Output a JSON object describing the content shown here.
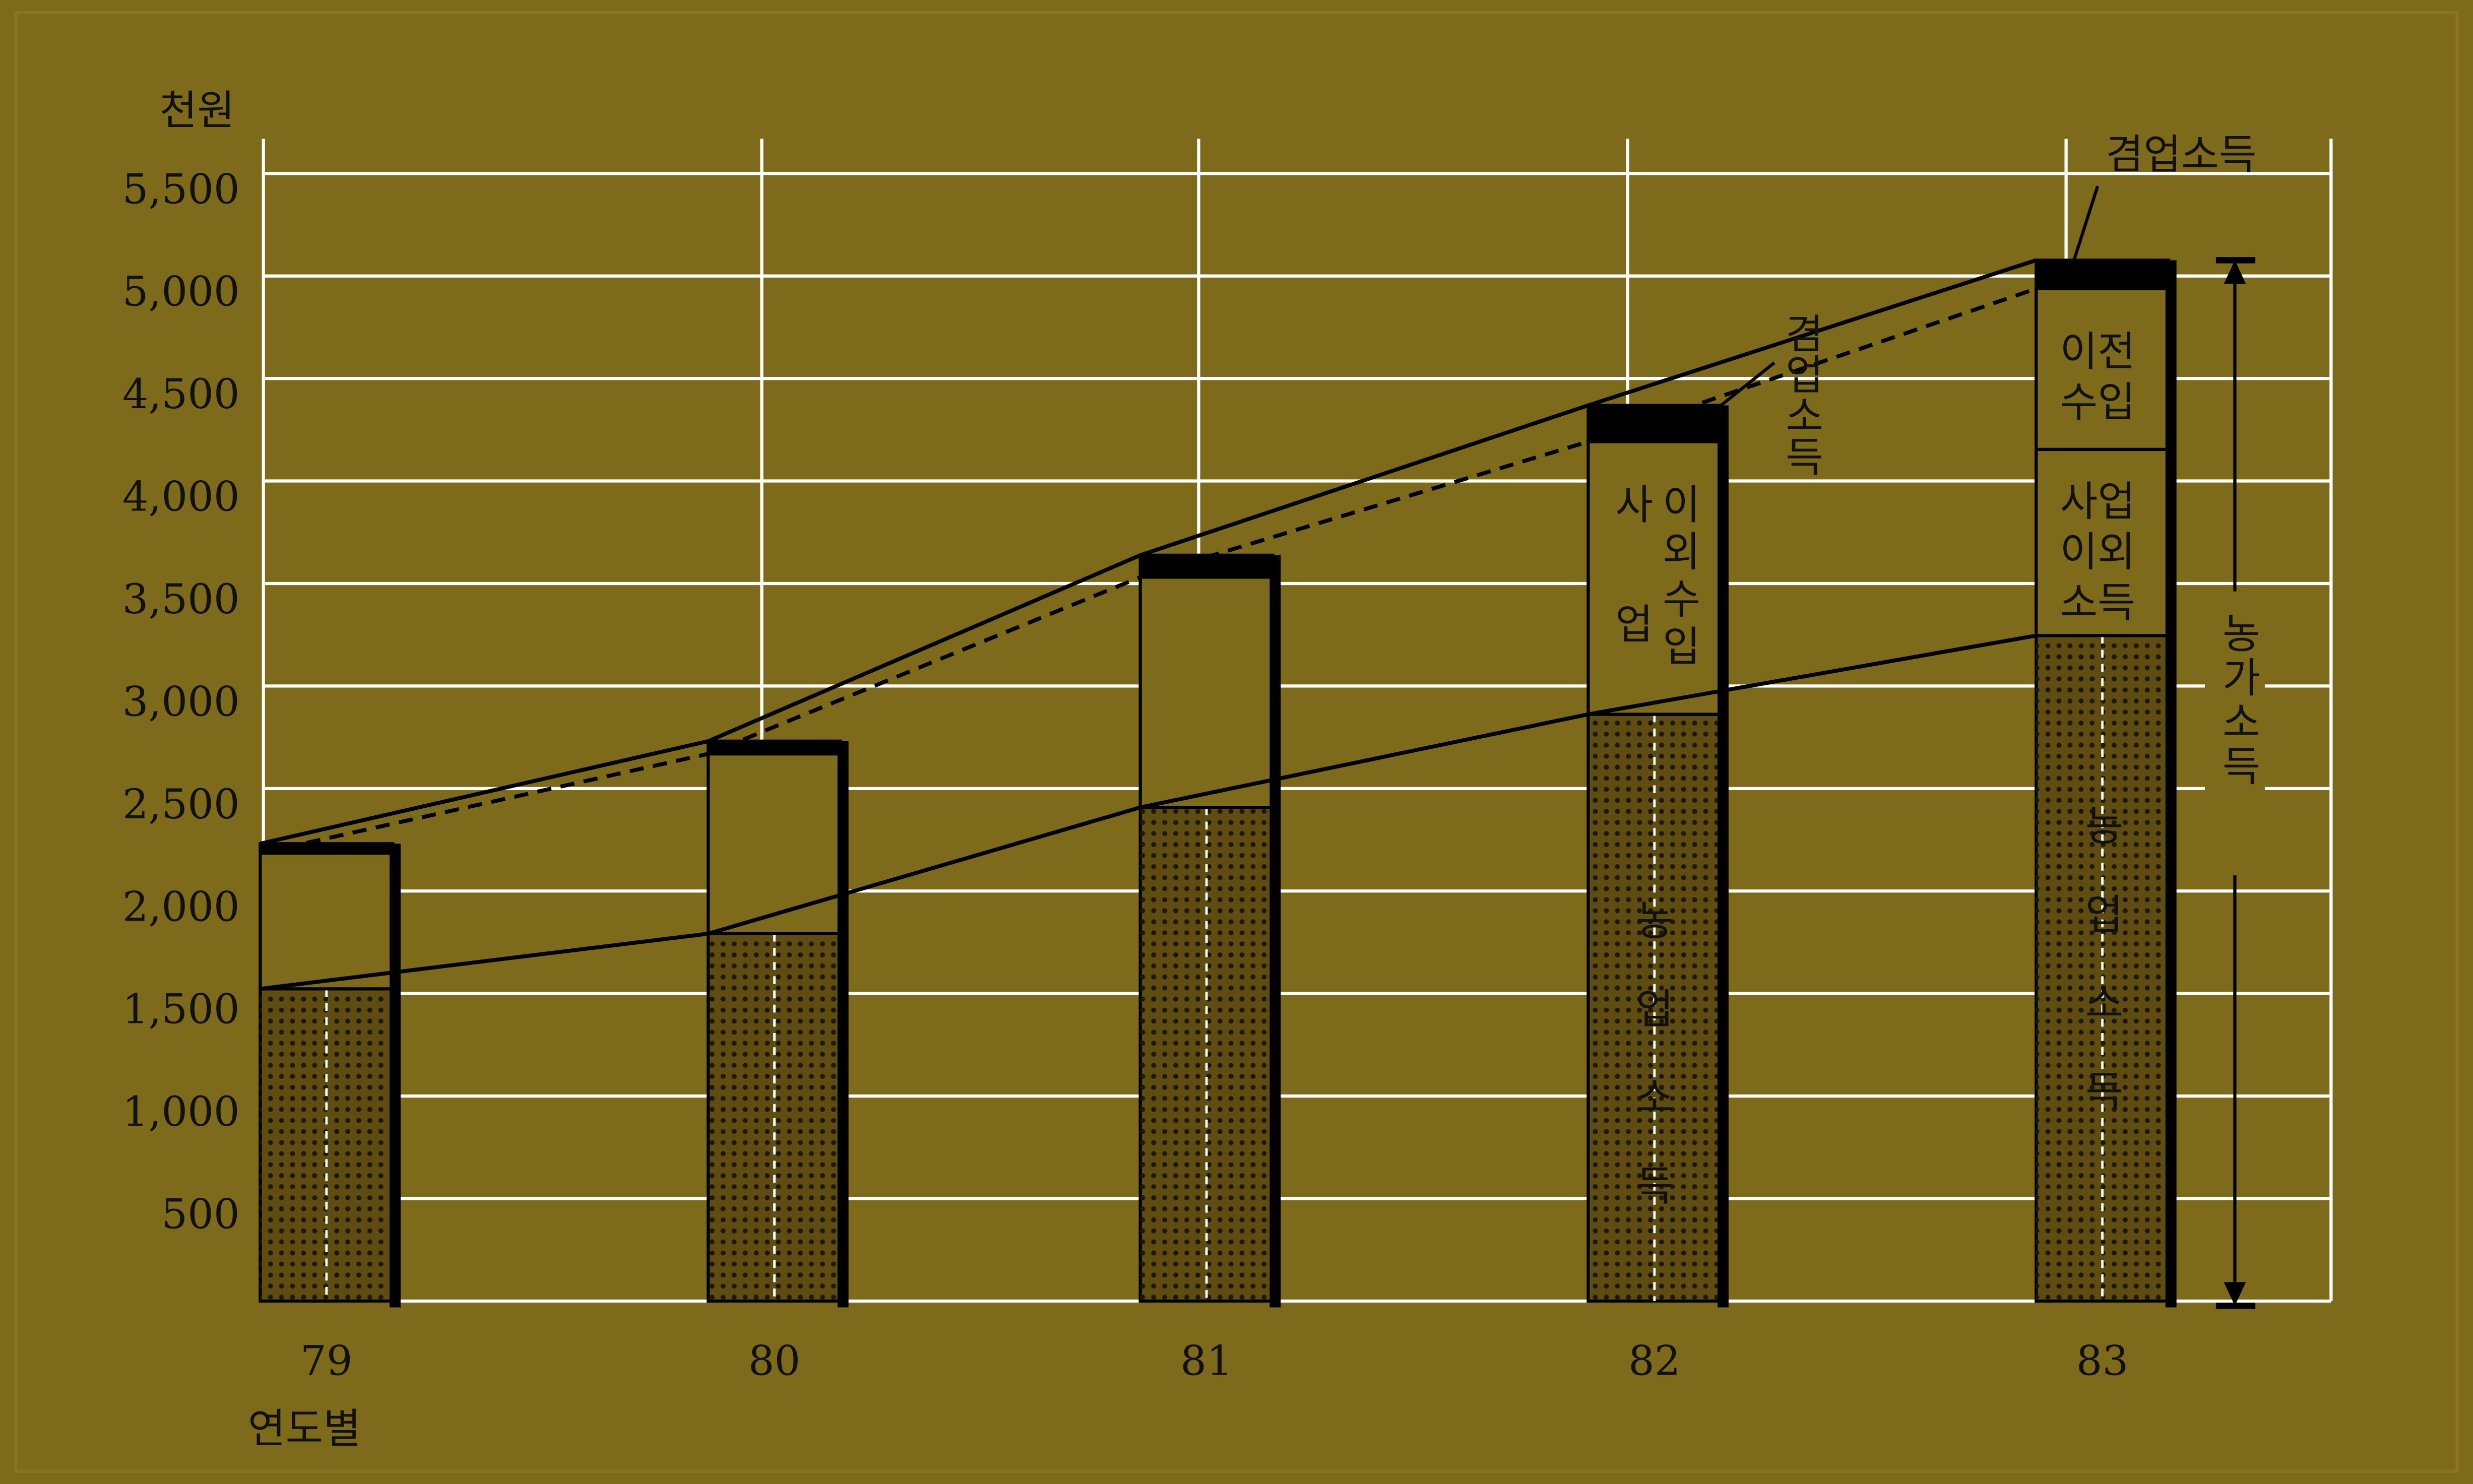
{
  "chart_data": {
    "type": "stacked_bar",
    "categories": [
      "79",
      "80",
      "81",
      "82",
      "83"
    ],
    "series": [
      {
        "name": "농업소득",
        "color": "#5e4c10",
        "values": [
          1523,
          1792,
          2408,
          2862,
          3246
        ]
      },
      {
        "name": "사업이외소득",
        "color": "#7d6a1a",
        "values": [
          662,
          877,
          1123,
          1330,
          908
        ]
      },
      {
        "name": "이전수입",
        "color": "#7d6a1a",
        "values": [
          null,
          null,
          null,
          null,
          784
        ]
      },
      {
        "name": "겸업소득",
        "color": "#000000",
        "values": [
          46,
          62,
          107,
          177,
          139
        ]
      }
    ],
    "ylim": [
      0,
      5600
    ],
    "yticks": [
      500,
      {
        "value": 1000,
        "label": "1,000"
      },
      {
        "value": 1500,
        "label": "1,500"
      },
      {
        "value": 2000,
        "label": "2,000"
      },
      {
        "value": 2500,
        "label": "2,500"
      },
      {
        "value": 3000,
        "label": "3,000"
      },
      {
        "value": 3500,
        "label": "3,500"
      },
      {
        "value": 4000,
        "label": "4,000"
      },
      {
        "value": 4500,
        "label": "4,500"
      },
      {
        "value": 5000,
        "label": "5,000"
      },
      {
        "value": 5500,
        "label": "5,500"
      }
    ],
    "grid": true,
    "annotations": [
      {
        "text": "천원"
      },
      {
        "text": "연도별"
      },
      {
        "text": "겸업소득"
      },
      {
        "text": "겸업소득"
      },
      {
        "lines": [
          "사업",
          "이외수입"
        ]
      },
      {
        "lines": [
          "사업",
          "이외",
          "소득"
        ]
      },
      {
        "lines": [
          "이전",
          "수입"
        ]
      },
      {
        "text": "농업소득"
      },
      {
        "text": "농업소득"
      },
      {
        "text": "농가소득"
      }
    ]
  }
}
